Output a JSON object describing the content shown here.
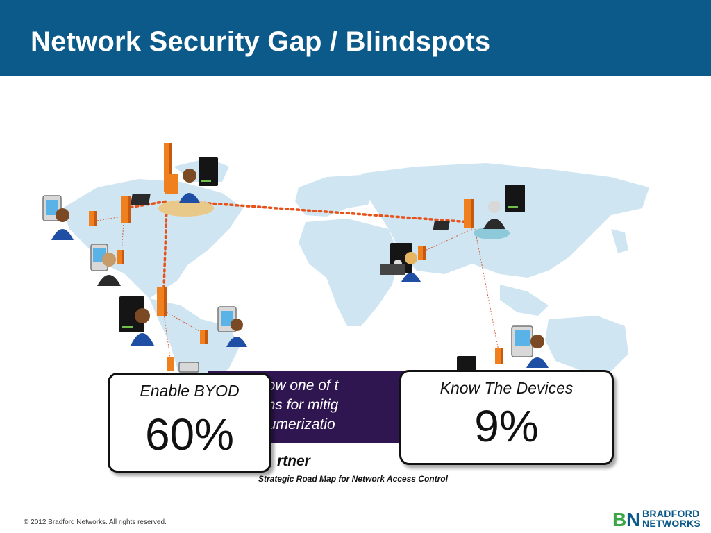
{
  "slide": {
    "title": "Network Security Gap / Blindspots"
  },
  "quote": {
    "lines": [
      "is now one of t",
      "nisms for mitig",
      "onsumerizatio"
    ]
  },
  "callouts": [
    {
      "label": "Enable BYOD",
      "value": "60%"
    },
    {
      "label": "Know The Devices",
      "value": "9%"
    }
  ],
  "source": {
    "name": "rtner",
    "title": "Strategic Road Map for Network Access Control"
  },
  "footer": {
    "copyright": "© 2012 Bradford Networks. All rights reserved.",
    "logo_line1": "BRADFORD",
    "logo_line2": "NETWORKS"
  },
  "colors": {
    "header": "#0c5a8a",
    "map_land": "#cfe6f2",
    "connection_line": "#e8521a",
    "server_orange": "#f0801e",
    "quote_bg": "#2f1650",
    "logo_green": "#3aa647",
    "logo_blue": "#0c5a8a"
  },
  "icons": [
    "world-map",
    "server-tower-icon",
    "user-avatar-icon",
    "tablet-icon",
    "smartphone-icon",
    "laptop-icon",
    "router-icon"
  ]
}
